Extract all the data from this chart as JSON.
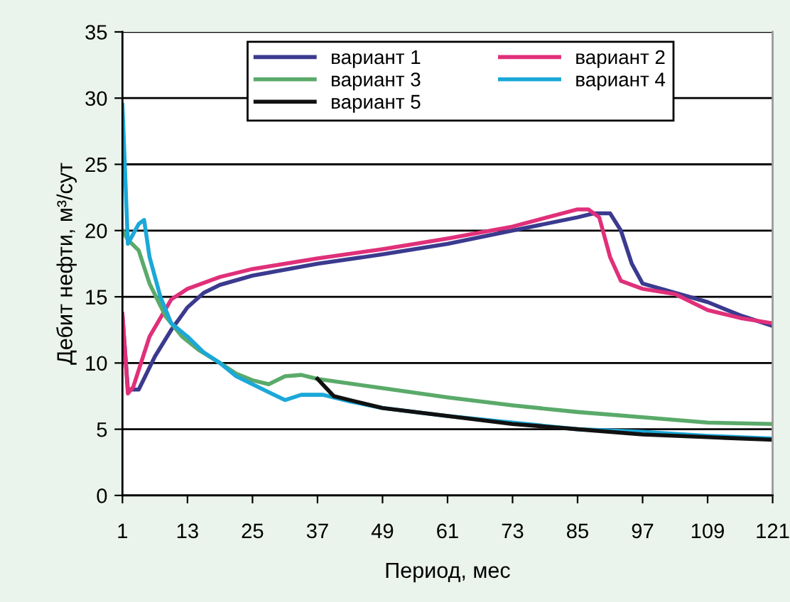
{
  "chart_data": {
    "type": "line",
    "xlabel": "Период, мес",
    "ylabel": "Дебит нефти, м³/сут",
    "xlim": [
      1,
      121
    ],
    "xticks": [
      1,
      13,
      25,
      37,
      49,
      61,
      73,
      85,
      97,
      109,
      121
    ],
    "ylim": [
      0,
      35
    ],
    "yticks": [
      0,
      5,
      10,
      15,
      20,
      25,
      30,
      35
    ],
    "grid": "y",
    "legend": "top",
    "marker": "none",
    "line_style": "solid",
    "series": [
      {
        "name": "вариант 1",
        "color": "#3b3a8f",
        "x": [
          1,
          2,
          4,
          7,
          10,
          13,
          16,
          19,
          25,
          37,
          49,
          61,
          73,
          85,
          88,
          91,
          93,
          95,
          97,
          103,
          109,
          115,
          121
        ],
        "values": [
          13.5,
          8,
          8,
          10.5,
          12.5,
          14.2,
          15.3,
          15.9,
          16.6,
          17.5,
          18.2,
          19,
          20,
          21,
          21.3,
          21.3,
          20,
          17.5,
          16,
          15.3,
          14.6,
          13.6,
          12.8
        ]
      },
      {
        "name": "вариант 2",
        "color": "#e0307a",
        "x": [
          1,
          2,
          3,
          6,
          10,
          13,
          19,
          25,
          37,
          49,
          61,
          73,
          85,
          87,
          89,
          91,
          93,
          97,
          103,
          109,
          115,
          121
        ],
        "values": [
          13.7,
          7.7,
          8.2,
          12,
          14.8,
          15.6,
          16.5,
          17.1,
          17.9,
          18.6,
          19.4,
          20.3,
          21.6,
          21.6,
          21,
          18,
          16.2,
          15.6,
          15.2,
          14,
          13.4,
          13
        ]
      },
      {
        "name": "вариант 3",
        "color": "#5aaa6a",
        "x": [
          1,
          2,
          4,
          6,
          9,
          12,
          15,
          19,
          22,
          25,
          28,
          31,
          34,
          37,
          49,
          61,
          73,
          85,
          97,
          109,
          121
        ],
        "values": [
          20,
          19.3,
          18.5,
          16,
          13.5,
          12,
          11,
          10,
          9.2,
          8.7,
          8.4,
          9,
          9.1,
          8.8,
          8.1,
          7.4,
          6.8,
          6.3,
          5.9,
          5.5,
          5.4
        ]
      },
      {
        "name": "вариант 4",
        "color": "#1ba8d8",
        "x": [
          1,
          2,
          4,
          5,
          6,
          8,
          10,
          13,
          16,
          19,
          22,
          25,
          28,
          31,
          34,
          38,
          43,
          49,
          61,
          73,
          85,
          97,
          109,
          121
        ],
        "values": [
          29.5,
          19,
          20.5,
          20.8,
          18,
          15,
          13,
          12,
          10.8,
          10,
          9,
          8.4,
          7.8,
          7.2,
          7.6,
          7.6,
          7.1,
          6.6,
          6,
          5.5,
          5,
          4.8,
          4.5,
          4.3
        ]
      },
      {
        "name": "вариант 5",
        "color": "#111111",
        "x": [
          37,
          40,
          43,
          49,
          61,
          73,
          85,
          97,
          109,
          121
        ],
        "values": [
          8.8,
          7.5,
          7.2,
          6.6,
          6,
          5.4,
          5,
          4.6,
          4.4,
          4.2
        ]
      }
    ]
  }
}
